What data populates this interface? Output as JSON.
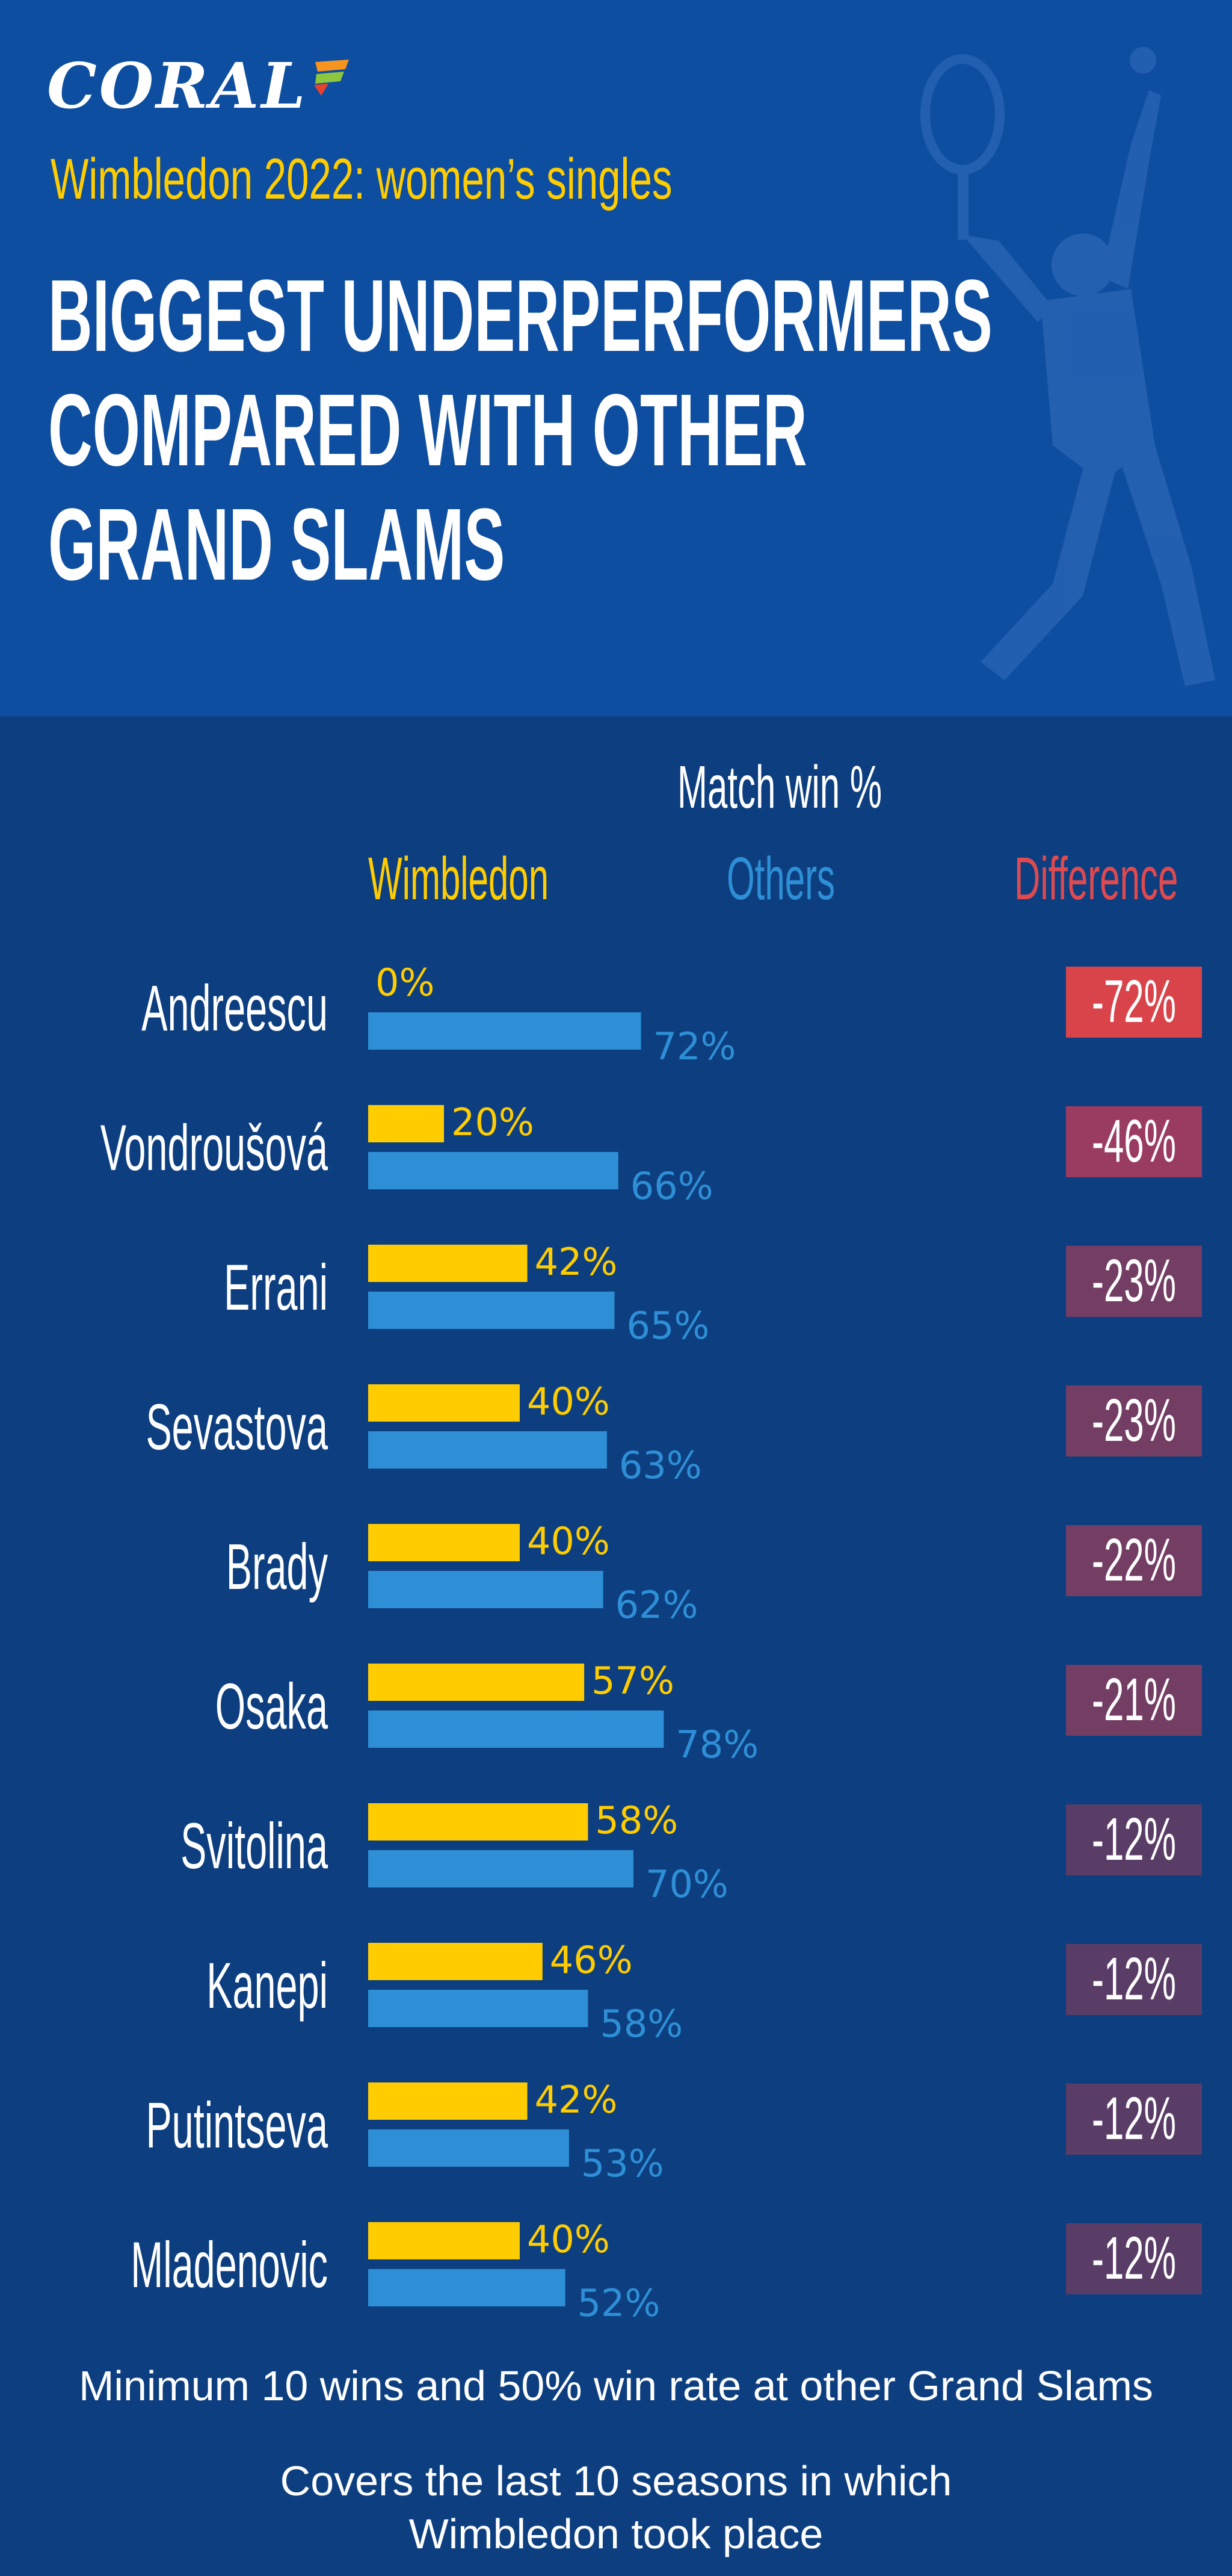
{
  "brand": {
    "logo": "CORAL"
  },
  "header": {
    "subtitle": "Wimbledon 2022: women’s singles",
    "title_lines": [
      "BIGGEST UNDERPERFORMERS",
      "COMPARED WITH OTHER",
      "GRAND SLAMS"
    ]
  },
  "columns": {
    "title": "Match win %",
    "wimbledon": "Wimbledon",
    "others": "Others",
    "difference": "Difference"
  },
  "colors": {
    "background": "#0d3f80",
    "header_background": "#0e4ea0",
    "wimbledon": "#ffcc00",
    "others": "#2e8fd6",
    "difference_header": "#e04a4f",
    "badge_largest": "#d9444b",
    "badge_large": "#9a3c62",
    "badge_mid": "#733d64",
    "badge_small": "#5a3d66"
  },
  "chart_data": {
    "type": "bar",
    "orientation": "horizontal",
    "categories": [
      "Andreescu",
      "Vondroušová",
      "Errani",
      "Sevastova",
      "Brady",
      "Osaka",
      "Svitolina",
      "Kanepi",
      "Putintseva",
      "Mladenovic"
    ],
    "series": [
      {
        "name": "Wimbledon",
        "values": [
          0,
          20,
          42,
          40,
          40,
          57,
          58,
          46,
          42,
          40
        ],
        "labels": [
          "0%",
          "20%",
          "42%",
          "40%",
          "40%",
          "57%",
          "58%",
          "46%",
          "42%",
          "40%"
        ]
      },
      {
        "name": "Others",
        "values": [
          72,
          66,
          65,
          63,
          62,
          78,
          70,
          58,
          53,
          52
        ],
        "labels": [
          "72%",
          "66%",
          "65%",
          "63%",
          "62%",
          "78%",
          "70%",
          "58%",
          "53%",
          "52%"
        ]
      }
    ],
    "difference": {
      "name": "Difference",
      "values": [
        -72,
        -46,
        -23,
        -23,
        -22,
        -21,
        -12,
        -12,
        -12,
        -12
      ],
      "labels": [
        "-72%",
        "-46%",
        "-23%",
        "-23%",
        "-22%",
        "-21%",
        "-12%",
        "-12%",
        "-12%",
        "-12%"
      ]
    },
    "title": "Match win %",
    "xlim": [
      0,
      100
    ],
    "grid": false,
    "legend": "column headers at top"
  },
  "footnotes": [
    "Minimum 10 wins and 50% win rate at other Grand Slams",
    "Covers the last 10 seasons in which",
    "Wimbledon took place"
  ]
}
